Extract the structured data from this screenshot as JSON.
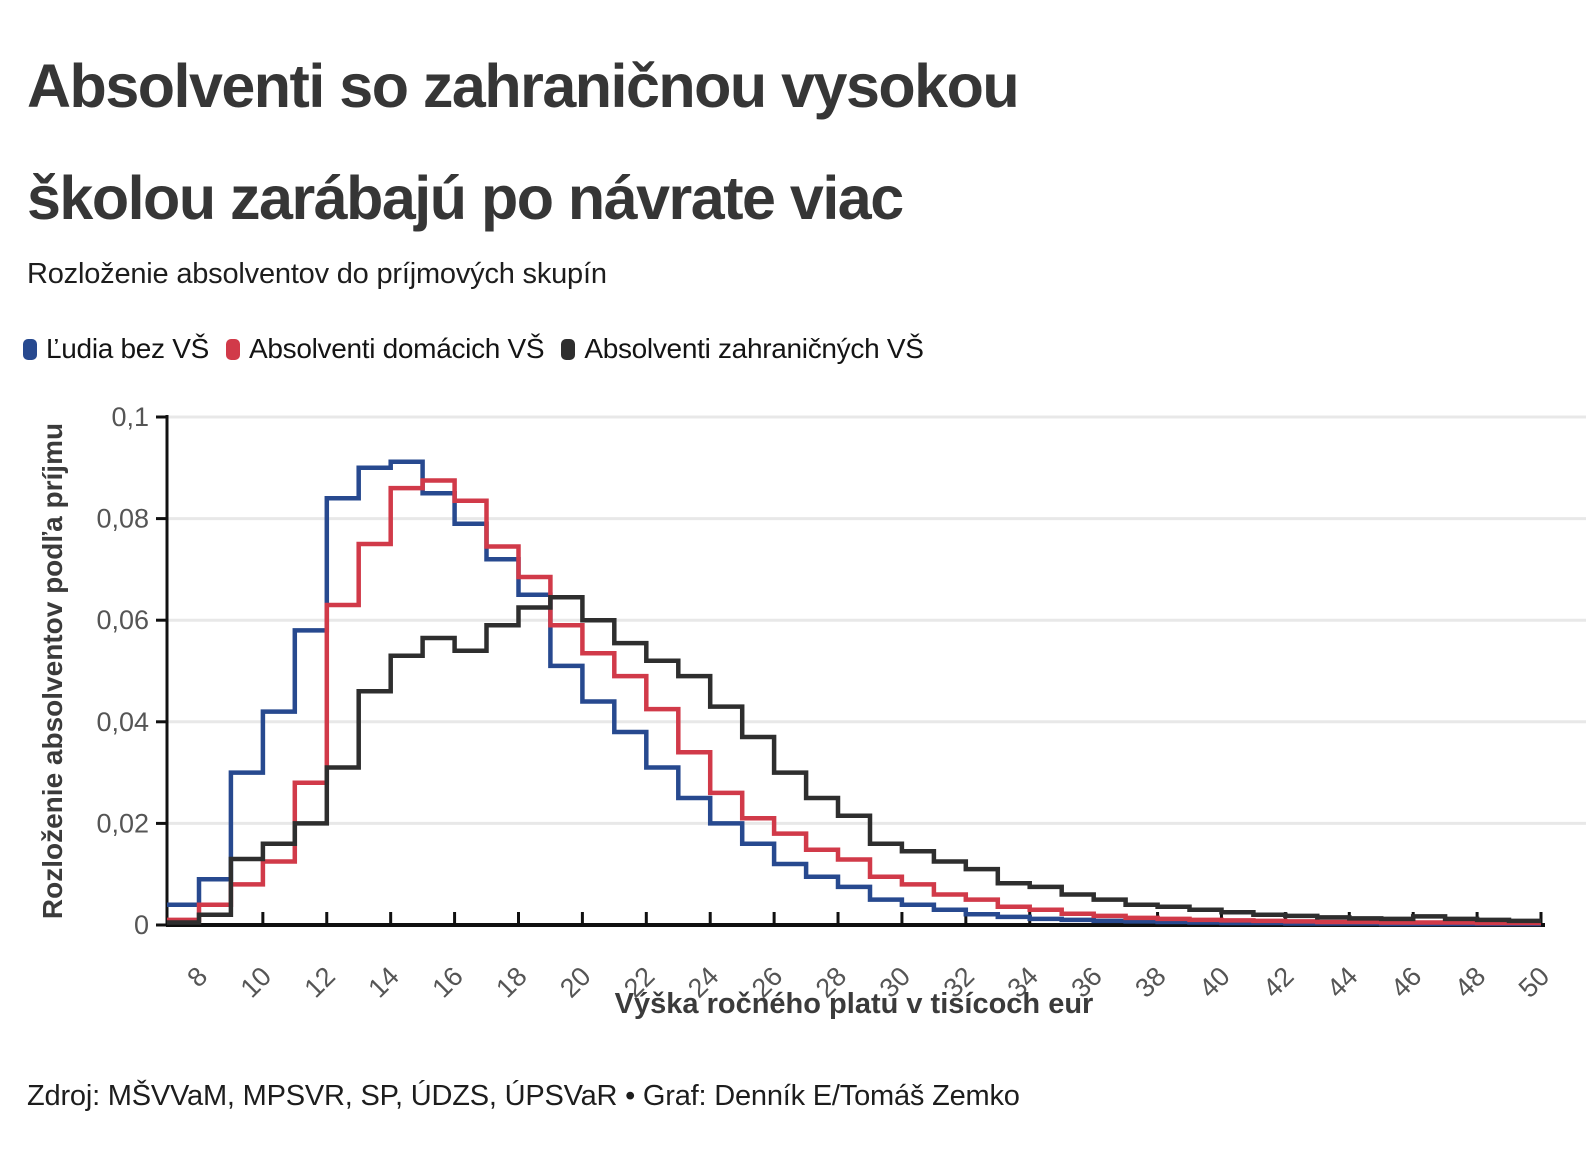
{
  "header": {
    "title_line1": "Absolventi so zahraničnou vysokou",
    "title_line2": "školou zarábajú po návrate viac",
    "subtitle": "Rozloženie absolventov do príjmových skupín"
  },
  "legend": [
    {
      "label": "Ľudia bez VŠ",
      "color": "#27498f"
    },
    {
      "label": "Absolventi domácich VŠ",
      "color": "#d13a49"
    },
    {
      "label": "Absolventi zahraničných VŠ",
      "color": "#2e2e2e"
    }
  ],
  "footer": {
    "source": "Zdroj: MŠVVaM, MPSVR, SP, ÚDZS, ÚPSVaR • Graf: Denník E/Tomáš Zemko"
  },
  "chart_data": {
    "type": "line",
    "interpolation": "step-after",
    "title": "Rozloženie absolventov do príjmových skupín",
    "xlabel": "Výška ročného platu v tisícoch eur",
    "ylabel": "Rozloženie absolventov podľa príjmu",
    "xlim": [
      7,
      50
    ],
    "ylim": [
      0,
      0.1
    ],
    "grid": "horizontal",
    "legend_position": "top",
    "x_bin_start": 7,
    "bin_width": 1,
    "x_ticks": [
      8,
      10,
      12,
      14,
      16,
      18,
      20,
      22,
      24,
      26,
      28,
      30,
      32,
      34,
      36,
      38,
      40,
      42,
      44,
      46,
      48,
      50
    ],
    "y_ticks": [
      {
        "value": 0,
        "label": "0"
      },
      {
        "value": 0.02,
        "label": "0,02"
      },
      {
        "value": 0.04,
        "label": "0,04"
      },
      {
        "value": 0.06,
        "label": "0,06"
      },
      {
        "value": 0.08,
        "label": "0,08"
      },
      {
        "value": 0.1,
        "label": "0,1"
      }
    ],
    "series": [
      {
        "name": "Ľudia bez VŠ",
        "color": "#27498f",
        "values": [
          0.004,
          0.009,
          0.03,
          0.042,
          0.058,
          0.084,
          0.09,
          0.0912,
          0.085,
          0.079,
          0.072,
          0.065,
          0.051,
          0.044,
          0.038,
          0.031,
          0.025,
          0.02,
          0.016,
          0.012,
          0.0095,
          0.0075,
          0.005,
          0.004,
          0.003,
          0.0021,
          0.0016,
          0.0012,
          0.001,
          0.0008,
          0.0007,
          0.0006,
          0.0005,
          0.0004,
          0.0004,
          0.0003,
          0.0003,
          0.0003,
          0.0002,
          0.0002,
          0.0002,
          0.0002,
          0.0002
        ]
      },
      {
        "name": "Absolventi domácich VŠ",
        "color": "#d13a49",
        "values": [
          0.001,
          0.004,
          0.008,
          0.0125,
          0.028,
          0.063,
          0.075,
          0.086,
          0.0875,
          0.0835,
          0.0745,
          0.0685,
          0.059,
          0.0535,
          0.049,
          0.0425,
          0.034,
          0.026,
          0.021,
          0.018,
          0.0148,
          0.0129,
          0.0095,
          0.008,
          0.006,
          0.005,
          0.0036,
          0.003,
          0.0022,
          0.0018,
          0.0014,
          0.0012,
          0.001,
          0.0009,
          0.0008,
          0.0007,
          0.0006,
          0.0006,
          0.0005,
          0.0005,
          0.0005,
          0.0004,
          0.0004
        ]
      },
      {
        "name": "Absolventi zahraničných VŠ",
        "color": "#2e2e2e",
        "values": [
          0.0005,
          0.002,
          0.013,
          0.016,
          0.02,
          0.031,
          0.046,
          0.053,
          0.0565,
          0.054,
          0.059,
          0.0625,
          0.0645,
          0.06,
          0.0555,
          0.052,
          0.049,
          0.043,
          0.037,
          0.03,
          0.025,
          0.0215,
          0.016,
          0.0145,
          0.0125,
          0.011,
          0.0082,
          0.0075,
          0.006,
          0.005,
          0.004,
          0.0036,
          0.003,
          0.0025,
          0.002,
          0.0018,
          0.0015,
          0.0013,
          0.0012,
          0.0017,
          0.0012,
          0.001,
          0.0008
        ]
      }
    ]
  }
}
